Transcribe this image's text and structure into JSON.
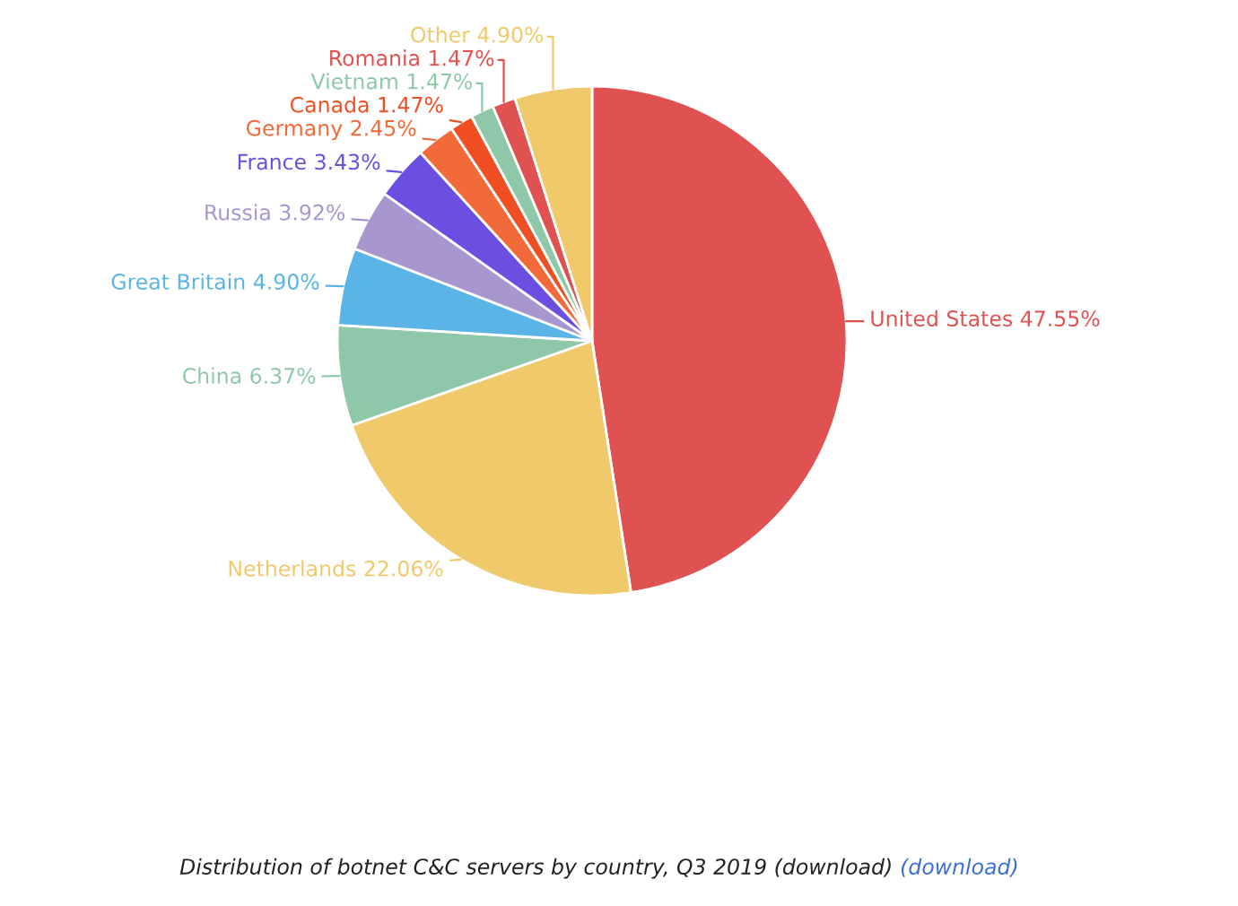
{
  "chart_data": {
    "type": "pie",
    "categories": [
      "United States",
      "Netherlands",
      "China",
      "Great Britain",
      "Russia",
      "France",
      "Germany",
      "Canada",
      "Vietnam",
      "Romania",
      "Other"
    ],
    "values": [
      47.55,
      22.06,
      6.37,
      4.9,
      3.92,
      3.43,
      2.45,
      1.47,
      1.47,
      1.47,
      4.9
    ],
    "value_labels": [
      "47.55%",
      "22.06%",
      "6.37%",
      "4.90%",
      "3.92%",
      "3.43%",
      "2.45%",
      "1.47%",
      "1.47%",
      "1.47%",
      "4.90%"
    ],
    "colors": [
      "#e05252",
      "#f0c96a",
      "#8fc8a8",
      "#5ab4e6",
      "#a897cf",
      "#6a4fe0",
      "#f26a3a",
      "#f04e23",
      "#8fc8a8",
      "#e05252",
      "#f0c96a"
    ],
    "annotations": [
      "Distribution of botnet C&C servers by country, Q3 2019 (download)",
      "(download)"
    ],
    "legend": false
  }
}
